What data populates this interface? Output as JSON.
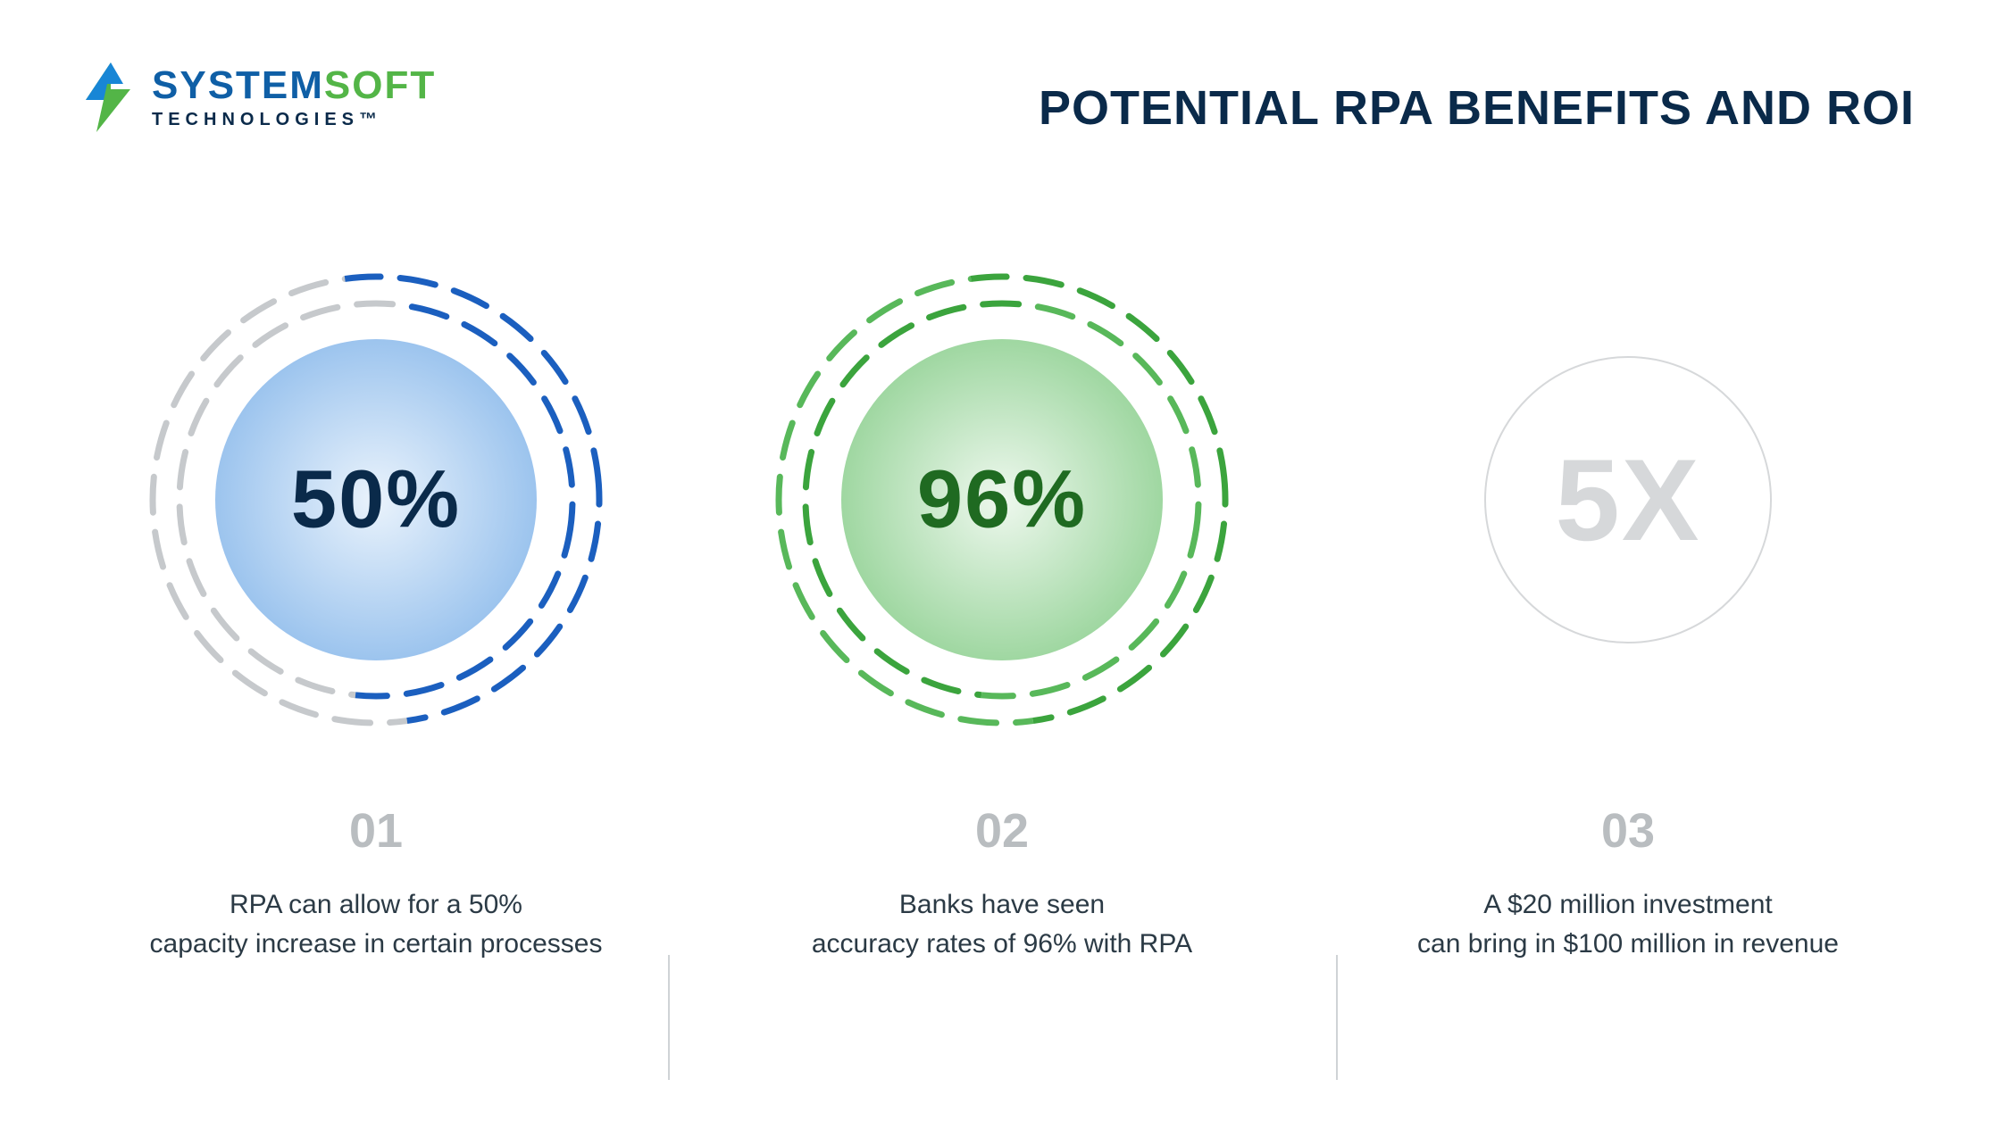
{
  "layout": {
    "slide_width": 2244,
    "slide_height": 1265,
    "background_color": "#ffffff"
  },
  "logo": {
    "word1": "SYSTEM",
    "word2": "SOFT",
    "subline": "TECHNOLOGIES™",
    "word1_color": "#0f5fa6",
    "word2_color": "#53b547",
    "subline_color": "#0a2a4a",
    "bolt_color_top": "#1886d6",
    "bolt_color_bottom": "#53b547"
  },
  "title": {
    "text": "POTENTIAL RPA BENEFITS AND ROI",
    "color": "#0a2a4a",
    "fontsize": 54,
    "weight": 800
  },
  "items": [
    {
      "value": "50%",
      "value_color": "#0a2a4a",
      "fill_center": "#eaf3fc",
      "fill_edge": "#9cc4ee",
      "outer_ring_color": "#1b5fbf",
      "inner_ring_color": "#c6c9cc",
      "ring_stroke_width": 7,
      "ring_dash": "40 22",
      "outer_radius": 250,
      "inner_radius": 220,
      "fill_radius": 180,
      "number": "01",
      "number_color": "#b9bdc0",
      "desc_line1": "RPA can allow for a 50%",
      "desc_line2": "capacity increase in certain processes",
      "desc_color": "#2b3a45",
      "faded": false,
      "has_rings": true
    },
    {
      "value": "96%",
      "value_color": "#1f6a21",
      "fill_center": "#eef8ee",
      "fill_edge": "#9fd7a1",
      "outer_ring_color": "#3ba43d",
      "inner_ring_color": "#58b85a",
      "ring_stroke_width": 7,
      "ring_dash": "40 22",
      "outer_radius": 250,
      "inner_radius": 220,
      "fill_radius": 180,
      "number": "02",
      "number_color": "#b9bdc0",
      "desc_line1": "Banks have seen",
      "desc_line2": "accuracy rates of 96% with RPA",
      "desc_color": "#2b3a45",
      "faded": false,
      "has_rings": true
    },
    {
      "value": "5X",
      "value_color": "#d6d8da",
      "fill_center": "#ffffff",
      "fill_edge": "#ffffff",
      "outer_ring_color": "#d6d8da",
      "inner_ring_color": "#d6d8da",
      "ring_stroke_width": 2,
      "ring_dash": "none",
      "outer_radius": 160,
      "inner_radius": 0,
      "fill_radius": 0,
      "number": "03",
      "number_color": "#b9bdc0",
      "desc_line1": "A $20 million investment",
      "desc_line2": "can bring in $100 million in revenue",
      "desc_color": "#2b3a45",
      "faded": true,
      "has_rings": false
    }
  ],
  "dividers": {
    "color": "#cfd3d6",
    "height": 140
  }
}
